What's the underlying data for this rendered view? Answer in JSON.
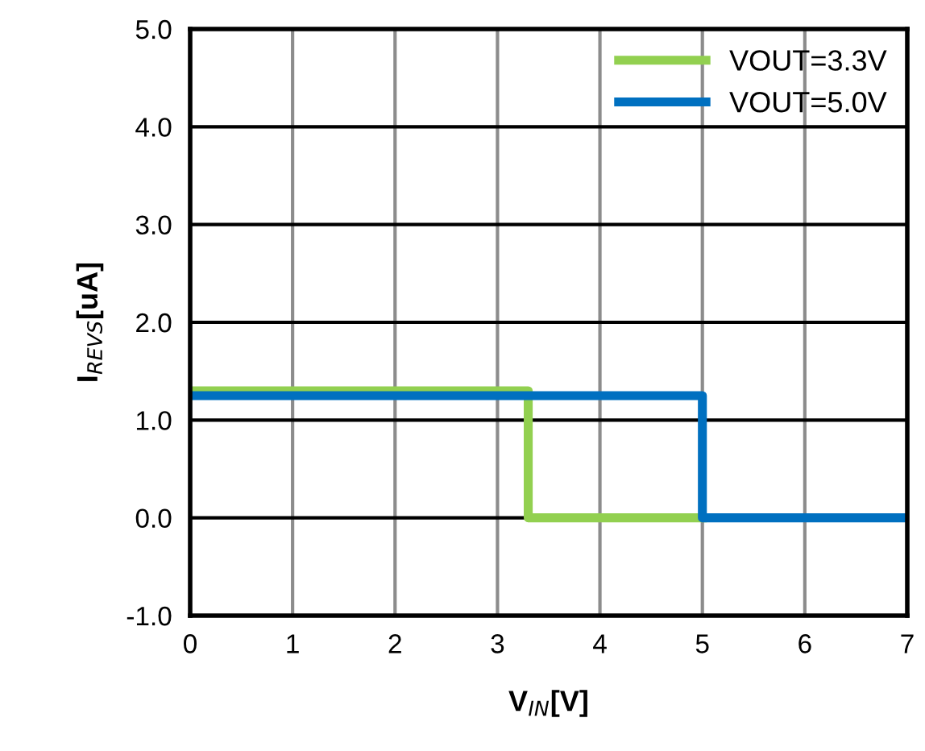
{
  "chart_data": {
    "type": "step",
    "xlabel": "V$_{IN}$[V]",
    "ylabel": "I$_{REVS}$[uA]",
    "xlim": [
      0,
      7
    ],
    "xticks": [
      0,
      1,
      2,
      3,
      4,
      5,
      6,
      7
    ],
    "ylim": [
      -1,
      5
    ],
    "yticks": [
      {
        "value": -1,
        "label": "-1.0"
      },
      {
        "value": 0,
        "label": "0.0"
      },
      {
        "value": 1,
        "label": "1.0"
      },
      {
        "value": 2,
        "label": "2.0"
      },
      {
        "value": 3,
        "label": "3.0"
      },
      {
        "value": 4,
        "label": "4.0"
      },
      {
        "value": 5,
        "label": "5.0"
      }
    ],
    "grid": true,
    "legend": "top right",
    "series": [
      {
        "name": "VOUT=3.3V",
        "color": "#92d050",
        "x": [
          0,
          3.3,
          5
        ],
        "values": [
          1.3,
          0,
          0
        ]
      },
      {
        "name": "VOUT=5.0V",
        "color": "#0070c0",
        "x": [
          0,
          5,
          7
        ],
        "values": [
          1.25,
          0,
          0
        ]
      }
    ]
  }
}
